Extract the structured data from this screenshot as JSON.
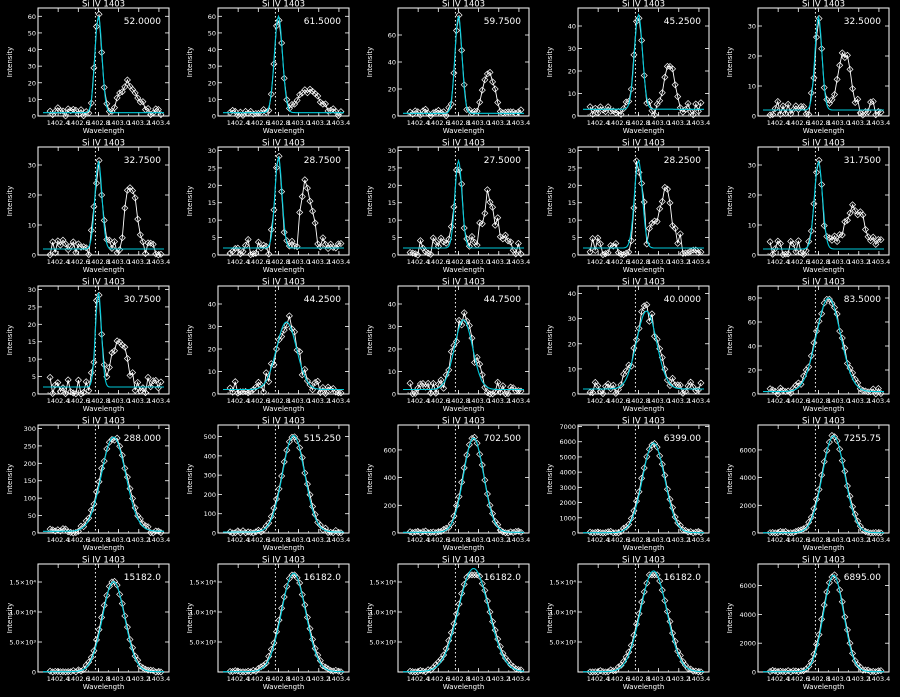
{
  "chart_data": {
    "type": "line",
    "layout": "5x5 grid of small-multiple spectral line profiles",
    "panel_title": "Si IV 1403",
    "xlabel": "Wavelength",
    "ylabel": "Intensity",
    "xlim": [
      1402.2,
      1403.5
    ],
    "x_tick_labels": [
      "1402.4",
      "1402.6",
      "1402.8",
      "1403.0",
      "1403.2",
      "1403.4"
    ],
    "reference_line_x": 1402.77,
    "colors": {
      "background": "#000000",
      "data": "#ffffff",
      "fit": "#00c8d8",
      "frame": "#ffffff"
    },
    "panels": [
      {
        "label": "52.0000",
        "ylim": [
          0,
          65
        ],
        "y_ticks": [
          0,
          10,
          20,
          30,
          40,
          50,
          60
        ],
        "y_tick_labels": [
          "0",
          "10",
          "20",
          "30",
          "40",
          "50",
          "60"
        ],
        "fit": {
          "base": 2,
          "amp": 58,
          "center": 1402.8,
          "sigma": 0.035
        },
        "second_peak": {
          "amp": 18,
          "center": 1403.1,
          "sigma": 0.08
        },
        "noise": 3
      },
      {
        "label": "61.5000",
        "ylim": [
          0,
          65
        ],
        "y_ticks": [
          0,
          10,
          20,
          30,
          40,
          50,
          60
        ],
        "y_tick_labels": [
          "0",
          "10",
          "20",
          "30",
          "40",
          "50",
          "60"
        ],
        "fit": {
          "base": 2,
          "amp": 58,
          "center": 1402.8,
          "sigma": 0.04
        },
        "second_peak": {
          "amp": 14,
          "center": 1403.1,
          "sigma": 0.1
        },
        "noise": 2
      },
      {
        "label": "59.7500",
        "ylim": [
          0,
          80
        ],
        "y_ticks": [
          0,
          20,
          40,
          60
        ],
        "y_tick_labels": [
          "0",
          "20",
          "40",
          "60"
        ],
        "fit": {
          "base": 2,
          "amp": 72,
          "center": 1402.8,
          "sigma": 0.035
        },
        "second_peak": {
          "amp": 28,
          "center": 1403.1,
          "sigma": 0.06
        },
        "noise": 3
      },
      {
        "label": "45.2500",
        "ylim": [
          0,
          48
        ],
        "y_ticks": [
          0,
          10,
          20,
          30,
          40
        ],
        "y_tick_labels": [
          "0",
          "10",
          "20",
          "30",
          "40"
        ],
        "fit": {
          "base": 3,
          "amp": 42,
          "center": 1402.8,
          "sigma": 0.04
        },
        "second_peak": {
          "amp": 22,
          "center": 1403.1,
          "sigma": 0.05
        },
        "noise": 3
      },
      {
        "label": "32.5000",
        "ylim": [
          0,
          36
        ],
        "y_ticks": [
          0,
          10,
          20,
          30
        ],
        "y_tick_labels": [
          "0",
          "10",
          "20",
          "30"
        ],
        "fit": {
          "base": 2,
          "amp": 31,
          "center": 1402.8,
          "sigma": 0.035
        },
        "second_peak": {
          "amp": 19,
          "center": 1403.05,
          "sigma": 0.06
        },
        "noise": 3
      },
      {
        "label": "32.7500",
        "ylim": [
          0,
          36
        ],
        "y_ticks": [
          0,
          10,
          20,
          30
        ],
        "y_tick_labels": [
          "0",
          "10",
          "20",
          "30"
        ],
        "fit": {
          "base": 2,
          "amp": 29,
          "center": 1402.8,
          "sigma": 0.035
        },
        "second_peak": {
          "amp": 22,
          "center": 1403.12,
          "sigma": 0.05
        },
        "noise": 3
      },
      {
        "label": "28.7500",
        "ylim": [
          0,
          31
        ],
        "y_ticks": [
          0,
          5,
          10,
          15,
          20,
          25,
          30
        ],
        "y_tick_labels": [
          "0",
          "5",
          "10",
          "15",
          "20",
          "25",
          "30"
        ],
        "fit": {
          "base": 2,
          "amp": 26,
          "center": 1402.8,
          "sigma": 0.035
        },
        "second_peak": {
          "amp": 19,
          "center": 1403.08,
          "sigma": 0.05
        },
        "noise": 3
      },
      {
        "label": "27.5000",
        "ylim": [
          0,
          31
        ],
        "y_ticks": [
          0,
          5,
          10,
          15,
          20,
          25,
          30
        ],
        "y_tick_labels": [
          "0",
          "5",
          "10",
          "15",
          "20",
          "25",
          "30"
        ],
        "fit": {
          "base": 2,
          "amp": 25,
          "center": 1402.8,
          "sigma": 0.035
        },
        "second_peak": {
          "amp": 14,
          "center": 1403.1,
          "sigma": 0.07
        },
        "noise": 3
      },
      {
        "label": "28.2500",
        "ylim": [
          0,
          31
        ],
        "y_ticks": [
          0,
          5,
          10,
          15,
          20,
          25,
          30
        ],
        "y_tick_labels": [
          "0",
          "5",
          "10",
          "15",
          "20",
          "25",
          "30"
        ],
        "fit": {
          "base": 2,
          "amp": 25,
          "center": 1402.8,
          "sigma": 0.04
        },
        "second_peak": {
          "amp": 16,
          "center": 1403.05,
          "sigma": 0.08
        },
        "noise": 4
      },
      {
        "label": "31.7500",
        "ylim": [
          0,
          36
        ],
        "y_ticks": [
          0,
          10,
          20,
          30
        ],
        "y_tick_labels": [
          "0",
          "10",
          "20",
          "30"
        ],
        "fit": {
          "base": 2,
          "amp": 29,
          "center": 1402.8,
          "sigma": 0.04
        },
        "second_peak": {
          "amp": 13,
          "center": 1403.15,
          "sigma": 0.1
        },
        "noise": 3
      },
      {
        "label": "30.7500",
        "ylim": [
          0,
          31
        ],
        "y_ticks": [
          0,
          5,
          10,
          15,
          20,
          25,
          30
        ],
        "y_tick_labels": [
          "0",
          "5",
          "10",
          "15",
          "20",
          "25",
          "30"
        ],
        "fit": {
          "base": 2,
          "amp": 27,
          "center": 1402.8,
          "sigma": 0.03
        },
        "second_peak": {
          "amp": 12,
          "center": 1403.0,
          "sigma": 0.08
        },
        "noise": 3
      },
      {
        "label": "44.2500",
        "ylim": [
          0,
          48
        ],
        "y_ticks": [
          0,
          10,
          20,
          30,
          40
        ],
        "y_tick_labels": [
          "0",
          "10",
          "20",
          "30",
          "40"
        ],
        "fit": {
          "base": 2,
          "amp": 30,
          "center": 1402.88,
          "sigma": 0.1
        },
        "second_peak": null,
        "noise": 4
      },
      {
        "label": "44.7500",
        "ylim": [
          0,
          48
        ],
        "y_ticks": [
          0,
          10,
          20,
          30,
          40
        ],
        "y_tick_labels": [
          "0",
          "10",
          "20",
          "30",
          "40"
        ],
        "fit": {
          "base": 2,
          "amp": 31,
          "center": 1402.85,
          "sigma": 0.09
        },
        "second_peak": null,
        "noise": 4
      },
      {
        "label": "40.0000",
        "ylim": [
          0,
          43
        ],
        "y_ticks": [
          0,
          10,
          20,
          30,
          40
        ],
        "y_tick_labels": [
          "0",
          "10",
          "20",
          "30",
          "40"
        ],
        "fit": {
          "base": 2,
          "amp": 31,
          "center": 1402.88,
          "sigma": 0.1
        },
        "second_peak": null,
        "noise": 3
      },
      {
        "label": "83.5000",
        "ylim": [
          0,
          90
        ],
        "y_ticks": [
          0,
          20,
          40,
          60,
          80
        ],
        "y_tick_labels": [
          "0",
          "20",
          "40",
          "60",
          "80"
        ],
        "fit": {
          "base": 2,
          "amp": 78,
          "center": 1402.9,
          "sigma": 0.12
        },
        "second_peak": null,
        "noise": 3
      },
      {
        "label": "288.000",
        "ylim": [
          0,
          310
        ],
        "y_ticks": [
          0,
          50,
          100,
          150,
          200,
          250,
          300
        ],
        "y_tick_labels": [
          "0",
          "50",
          "100",
          "150",
          "200",
          "250",
          "300"
        ],
        "fit": {
          "base": 5,
          "amp": 270,
          "center": 1402.95,
          "sigma": 0.12
        },
        "second_peak": null,
        "noise": 8
      },
      {
        "label": "515.250",
        "ylim": [
          0,
          560
        ],
        "y_ticks": [
          0,
          100,
          200,
          300,
          400,
          500
        ],
        "y_tick_labels": [
          "0",
          "100",
          "200",
          "300",
          "400",
          "500"
        ],
        "fit": {
          "base": 5,
          "amp": 500,
          "center": 1402.95,
          "sigma": 0.11
        },
        "second_peak": null,
        "noise": 10
      },
      {
        "label": "702.500",
        "ylim": [
          0,
          780
        ],
        "y_ticks": [
          0,
          200,
          400,
          600
        ],
        "y_tick_labels": [
          "0",
          "200",
          "400",
          "600"
        ],
        "fit": {
          "base": 5,
          "amp": 680,
          "center": 1402.95,
          "sigma": 0.1
        },
        "second_peak": null,
        "noise": 12
      },
      {
        "label": "6399.00",
        "ylim": [
          0,
          7100
        ],
        "y_ticks": [
          0,
          1000,
          2000,
          3000,
          4000,
          5000,
          6000,
          7000
        ],
        "y_tick_labels": [
          "0",
          "1000",
          "2000",
          "3000",
          "4000",
          "5000",
          "6000",
          "7000"
        ],
        "fit": {
          "base": 20,
          "amp": 5900,
          "center": 1402.95,
          "sigma": 0.11
        },
        "second_peak": null,
        "noise": 100
      },
      {
        "label": "7255.75",
        "ylim": [
          0,
          7800
        ],
        "y_ticks": [
          0,
          2000,
          4000,
          6000
        ],
        "y_tick_labels": [
          "0",
          "2000",
          "4000",
          "6000"
        ],
        "fit": {
          "base": 20,
          "amp": 7000,
          "center": 1402.95,
          "sigma": 0.11
        },
        "second_peak": null,
        "noise": 100
      },
      {
        "label": "15182.0",
        "ylim": [
          0,
          18000
        ],
        "y_ticks": [
          0,
          5000,
          10000,
          15000
        ],
        "y_tick_labels": [
          "0",
          "5.0×10³",
          "1.0×10⁴",
          "1.5×10⁴"
        ],
        "fit": {
          "base": 50,
          "amp": 15000,
          "center": 1402.95,
          "sigma": 0.11
        },
        "second_peak": null,
        "noise": 200
      },
      {
        "label": "16182.0",
        "ylim": [
          0,
          18000
        ],
        "y_ticks": [
          5000,
          10000,
          15000
        ],
        "y_tick_labels": [
          "5.0×10³",
          "1.0×10⁴",
          "1.5×10⁴"
        ],
        "fit": {
          "base": 50,
          "amp": 16400,
          "center": 1402.95,
          "sigma": 0.12
        },
        "second_peak": null,
        "noise": 200,
        "saturate": 16182
      },
      {
        "label": "16182.0",
        "ylim": [
          0,
          18000
        ],
        "y_ticks": [
          5000,
          10000,
          15000
        ],
        "y_tick_labels": [
          "5.0×10³",
          "1.0×10⁴",
          "1.5×10⁴"
        ],
        "fit": {
          "base": 50,
          "amp": 17200,
          "center": 1402.95,
          "sigma": 0.15
        },
        "second_peak": null,
        "noise": 200,
        "saturate": 16182
      },
      {
        "label": "16182.0",
        "ylim": [
          0,
          18000
        ],
        "y_ticks": [
          5000,
          10000,
          15000
        ],
        "y_tick_labels": [
          "5.0×10³",
          "1.0×10⁴",
          "1.5×10⁴"
        ],
        "fit": {
          "base": 50,
          "amp": 16800,
          "center": 1402.95,
          "sigma": 0.13
        },
        "second_peak": null,
        "noise": 200,
        "saturate": 16182
      },
      {
        "label": "6895.00",
        "ylim": [
          0,
          7500
        ],
        "y_ticks": [
          0,
          2000,
          4000,
          6000
        ],
        "y_tick_labels": [
          "0",
          "2000",
          "4000",
          "6000"
        ],
        "fit": {
          "base": 20,
          "amp": 6700,
          "center": 1402.95,
          "sigma": 0.1
        },
        "second_peak": null,
        "noise": 100
      }
    ]
  }
}
